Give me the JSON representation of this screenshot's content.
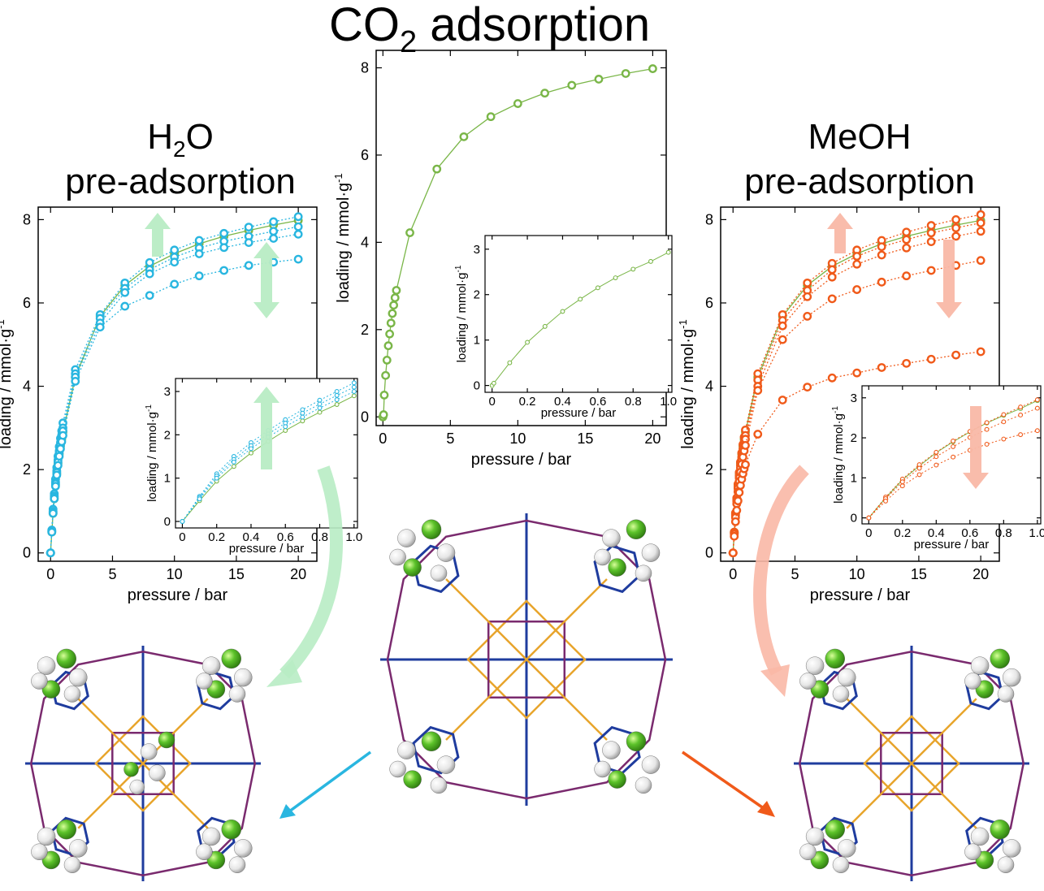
{
  "titles": {
    "main": "CO",
    "main_sub": "2",
    "main_rest": " adsorption",
    "left_l1": "H",
    "left_l1_sub": "2",
    "left_l1_rest": "O",
    "left_l2": "pre-adsorption",
    "right_l1": "MeOH",
    "right_l2": "pre-adsorption"
  },
  "colors": {
    "co2": "#7ab648",
    "water": "#29b6e0",
    "meoh": "#f05a1a",
    "arrow_green": "#b8ecc4",
    "arrow_salmon": "#f9b8a6",
    "framework_gold": "#e8a52c",
    "framework_blue": "#1f3c9e",
    "framework_purple": "#7a2a6e",
    "atom_green": "#5cc22a",
    "atom_white": "#eeeeee"
  },
  "chart_data": [
    {
      "id": "co2-main",
      "type": "scatter",
      "xlabel": "pressure / bar",
      "ylabel": "loading / mmol·g",
      "ylabel_sup": "-1",
      "xlim": [
        -0.5,
        21
      ],
      "ylim": [
        -0.2,
        8.4
      ],
      "xticks": [
        0,
        5,
        10,
        15,
        20
      ],
      "yticks": [
        0,
        2,
        4,
        6,
        8
      ],
      "series": [
        {
          "color": "co2",
          "line": "solid",
          "x": [
            0,
            0.05,
            0.1,
            0.2,
            0.3,
            0.4,
            0.5,
            0.6,
            0.7,
            0.8,
            0.9,
            1,
            2,
            4,
            6,
            8,
            10,
            12,
            14,
            16,
            18,
            20
          ],
          "y": [
            0,
            0.05,
            0.5,
            0.95,
            1.3,
            1.63,
            1.9,
            2.15,
            2.37,
            2.56,
            2.73,
            2.9,
            4.22,
            5.68,
            6.42,
            6.88,
            7.18,
            7.42,
            7.6,
            7.74,
            7.87,
            7.98
          ]
        }
      ]
    },
    {
      "id": "co2-inset",
      "type": "scatter",
      "xlabel": "pressure / bar",
      "ylabel": "loading / mmol·g",
      "ylabel_sup": "-1",
      "xlim": [
        -0.04,
        1.02
      ],
      "ylim": [
        -0.15,
        3.3
      ],
      "xticks": [
        0,
        0.2,
        0.4,
        0.6,
        0.8,
        1.0
      ],
      "xticklabels": [
        "0",
        "0.2",
        "0.4",
        "0.6",
        "0.8",
        "1.0"
      ],
      "yticks": [
        0,
        1,
        2,
        3
      ],
      "series": [
        {
          "color": "co2",
          "line": "solid",
          "x": [
            0,
            0.01,
            0.1,
            0.2,
            0.3,
            0.4,
            0.5,
            0.6,
            0.7,
            0.8,
            0.9,
            1.0
          ],
          "y": [
            0,
            0.05,
            0.5,
            0.95,
            1.3,
            1.63,
            1.9,
            2.15,
            2.37,
            2.56,
            2.73,
            2.93
          ]
        }
      ]
    },
    {
      "id": "h2o-main",
      "type": "scatter",
      "xlabel": "pressure / bar",
      "ylabel": "loading / mmol·g",
      "ylabel_sup": "-1",
      "xlim": [
        -1.0,
        21.5
      ],
      "ylim": [
        -0.2,
        8.3
      ],
      "xticks": [
        0,
        5,
        10,
        15,
        20
      ],
      "yticks": [
        0,
        2,
        4,
        6,
        8
      ],
      "series": [
        {
          "color": "co2",
          "line": "solid",
          "filled_marker": false,
          "x": [
            0,
            0.1,
            0.2,
            0.3,
            0.4,
            0.5,
            0.6,
            0.7,
            0.8,
            0.9,
            1,
            2,
            4,
            6,
            8,
            10,
            12,
            14,
            16,
            18,
            20
          ],
          "y": [
            0,
            0.5,
            0.95,
            1.3,
            1.63,
            1.9,
            2.15,
            2.37,
            2.56,
            2.73,
            2.9,
            4.22,
            5.68,
            6.42,
            6.88,
            7.18,
            7.42,
            7.6,
            7.74,
            7.87,
            7.98
          ]
        },
        {
          "color": "water",
          "line": "dotted",
          "x": [
            0,
            0.1,
            0.2,
            0.3,
            0.4,
            0.5,
            0.6,
            0.7,
            0.8,
            0.9,
            1,
            2,
            4,
            6,
            8,
            10,
            12,
            14,
            16,
            18,
            20
          ],
          "y": [
            0,
            0.55,
            1.05,
            1.42,
            1.77,
            2.05,
            2.32,
            2.55,
            2.75,
            2.93,
            3.12,
            4.4,
            5.72,
            6.48,
            6.97,
            7.27,
            7.5,
            7.67,
            7.82,
            7.95,
            8.07
          ]
        },
        {
          "color": "water",
          "line": "dotted",
          "x": [
            0,
            0.1,
            0.2,
            0.3,
            0.4,
            0.5,
            0.6,
            0.7,
            0.8,
            0.9,
            1,
            2,
            4,
            6,
            8,
            10,
            12,
            14,
            16,
            18,
            20
          ],
          "y": [
            0,
            0.53,
            1.0,
            1.37,
            1.7,
            1.97,
            2.23,
            2.45,
            2.65,
            2.83,
            3.0,
            4.3,
            5.63,
            6.35,
            6.8,
            7.1,
            7.32,
            7.48,
            7.6,
            7.72,
            7.83
          ]
        },
        {
          "color": "water",
          "line": "dotted",
          "x": [
            0,
            0.1,
            0.2,
            0.3,
            0.4,
            0.5,
            0.6,
            0.7,
            0.8,
            0.9,
            1,
            2,
            4,
            6,
            8,
            10,
            12,
            14,
            16,
            18,
            20
          ],
          "y": [
            0,
            0.52,
            0.98,
            1.34,
            1.66,
            1.93,
            2.18,
            2.4,
            2.59,
            2.77,
            2.93,
            4.22,
            5.52,
            6.25,
            6.7,
            6.98,
            7.18,
            7.33,
            7.45,
            7.55,
            7.65
          ]
        },
        {
          "color": "water",
          "line": "dotted",
          "x": [
            0,
            0.1,
            0.2,
            0.3,
            0.4,
            0.5,
            0.6,
            0.7,
            0.8,
            0.9,
            1,
            2,
            4,
            6,
            8,
            10,
            12,
            14,
            16,
            18,
            20
          ],
          "y": [
            0,
            0.5,
            0.95,
            1.3,
            1.6,
            1.87,
            2.1,
            2.32,
            2.5,
            2.67,
            2.82,
            4.12,
            5.42,
            5.92,
            6.18,
            6.45,
            6.65,
            6.78,
            6.9,
            6.98,
            7.05
          ]
        }
      ]
    },
    {
      "id": "h2o-inset",
      "type": "scatter",
      "xlabel": "pressure / bar",
      "ylabel": "loading / mmol·g",
      "ylabel_sup": "-1",
      "xlim": [
        -0.04,
        1.02
      ],
      "ylim": [
        -0.15,
        3.3
      ],
      "xticks": [
        0,
        0.2,
        0.4,
        0.6,
        0.8,
        1.0
      ],
      "xticklabels": [
        "0",
        "0.2",
        "0.4",
        "0.6",
        "0.8",
        "1.0"
      ],
      "yticks": [
        0,
        1,
        2,
        3
      ],
      "series": [
        {
          "color": "co2",
          "line": "solid",
          "x": [
            0,
            0.1,
            0.2,
            0.3,
            0.4,
            0.5,
            0.6,
            0.7,
            0.8,
            0.9,
            1.0
          ],
          "y": [
            0,
            0.48,
            0.93,
            1.27,
            1.58,
            1.85,
            2.1,
            2.32,
            2.52,
            2.7,
            2.9
          ]
        },
        {
          "color": "water",
          "line": "dotted",
          "x": [
            0,
            0.1,
            0.2,
            0.3,
            0.4,
            0.5,
            0.6,
            0.7,
            0.8,
            0.9,
            1.0
          ],
          "y": [
            0,
            0.58,
            1.1,
            1.5,
            1.82,
            2.1,
            2.35,
            2.58,
            2.8,
            3.0,
            3.2
          ]
        },
        {
          "color": "water",
          "line": "dotted",
          "x": [
            0,
            0.1,
            0.2,
            0.3,
            0.4,
            0.5,
            0.6,
            0.7,
            0.8,
            0.9,
            1.0
          ],
          "y": [
            0,
            0.55,
            1.05,
            1.43,
            1.75,
            2.02,
            2.27,
            2.5,
            2.71,
            2.91,
            3.1
          ]
        },
        {
          "color": "water",
          "line": "dotted",
          "x": [
            0,
            0.1,
            0.2,
            0.3,
            0.4,
            0.5,
            0.6,
            0.7,
            0.8,
            0.9,
            1.0
          ],
          "y": [
            0,
            0.52,
            1.0,
            1.37,
            1.68,
            1.95,
            2.19,
            2.41,
            2.62,
            2.81,
            3.0
          ]
        }
      ]
    },
    {
      "id": "meoh-main",
      "type": "scatter",
      "xlabel": "pressure / bar",
      "ylabel": "loading / mmol·g",
      "ylabel_sup": "-1",
      "xlim": [
        -1.0,
        21.5
      ],
      "ylim": [
        -0.2,
        8.3
      ],
      "xticks": [
        0,
        5,
        10,
        15,
        20
      ],
      "yticks": [
        0,
        2,
        4,
        6,
        8
      ],
      "series": [
        {
          "color": "co2",
          "line": "solid",
          "x": [
            0,
            0.1,
            0.2,
            0.3,
            0.4,
            0.5,
            0.6,
            0.7,
            0.8,
            0.9,
            1,
            2,
            4,
            6,
            8,
            10,
            12,
            14,
            16,
            18,
            20
          ],
          "y": [
            0,
            0.5,
            0.95,
            1.3,
            1.63,
            1.9,
            2.15,
            2.37,
            2.56,
            2.73,
            2.9,
            4.22,
            5.68,
            6.42,
            6.88,
            7.18,
            7.42,
            7.6,
            7.74,
            7.87,
            7.98
          ]
        },
        {
          "color": "meoh",
          "line": "dotted",
          "x": [
            0,
            0.1,
            0.2,
            0.3,
            0.4,
            0.5,
            0.6,
            0.7,
            0.8,
            0.9,
            1,
            2,
            4,
            6,
            8,
            10,
            12,
            14,
            16,
            18,
            20
          ],
          "y": [
            0,
            0.5,
            0.96,
            1.32,
            1.65,
            1.93,
            2.18,
            2.4,
            2.6,
            2.78,
            2.95,
            4.3,
            5.72,
            6.48,
            6.95,
            7.27,
            7.5,
            7.7,
            7.86,
            8.0,
            8.12
          ]
        },
        {
          "color": "meoh",
          "line": "dotted",
          "x": [
            0,
            0.1,
            0.2,
            0.3,
            0.4,
            0.5,
            0.6,
            0.7,
            0.8,
            0.9,
            1,
            2,
            4,
            6,
            8,
            10,
            12,
            14,
            16,
            18,
            20
          ],
          "y": [
            0,
            0.48,
            0.92,
            1.27,
            1.58,
            1.85,
            2.1,
            2.3,
            2.5,
            2.66,
            2.82,
            4.15,
            5.58,
            6.3,
            6.8,
            7.12,
            7.35,
            7.52,
            7.68,
            7.8,
            7.92
          ]
        },
        {
          "color": "meoh",
          "line": "dotted",
          "x": [
            0,
            0.1,
            0.2,
            0.3,
            0.4,
            0.5,
            0.6,
            0.7,
            0.8,
            0.9,
            1,
            2,
            4,
            6,
            8,
            10,
            12,
            14,
            16,
            18,
            20
          ],
          "y": [
            0,
            0.47,
            0.9,
            1.24,
            1.55,
            1.8,
            2.04,
            2.24,
            2.42,
            2.58,
            2.73,
            4.0,
            5.45,
            6.15,
            6.62,
            6.93,
            7.15,
            7.32,
            7.47,
            7.6,
            7.72
          ]
        },
        {
          "color": "meoh",
          "line": "dotted",
          "x": [
            0,
            0.1,
            0.2,
            0.3,
            0.4,
            0.5,
            0.6,
            0.7,
            0.8,
            0.9,
            1,
            2,
            4,
            6,
            8,
            10,
            12,
            14,
            16,
            18,
            20
          ],
          "y": [
            0,
            0.45,
            0.85,
            1.18,
            1.47,
            1.72,
            1.94,
            2.13,
            2.3,
            2.45,
            2.58,
            3.9,
            5.12,
            5.68,
            6.1,
            6.32,
            6.5,
            6.65,
            6.78,
            6.9,
            7.02
          ]
        },
        {
          "color": "meoh",
          "line": "dotted",
          "x": [
            0,
            0.1,
            0.2,
            0.3,
            0.4,
            0.5,
            0.6,
            0.7,
            0.8,
            0.9,
            1,
            2,
            4,
            6,
            8,
            10,
            12,
            14,
            16,
            18,
            20
          ],
          "y": [
            0,
            0.4,
            0.75,
            1.02,
            1.25,
            1.45,
            1.62,
            1.77,
            1.9,
            2.02,
            2.12,
            2.85,
            3.67,
            3.98,
            4.2,
            4.32,
            4.45,
            4.55,
            4.65,
            4.75,
            4.83
          ]
        }
      ]
    },
    {
      "id": "meoh-inset",
      "type": "scatter",
      "xlabel": "pressure / bar",
      "ylabel": "loading / mmol·g",
      "ylabel_sup": "-1",
      "xlim": [
        -0.04,
        1.02
      ],
      "ylim": [
        -0.15,
        3.3
      ],
      "xticks": [
        0,
        0.2,
        0.4,
        0.6,
        0.8,
        1.0
      ],
      "xticklabels": [
        "0",
        "0.2",
        "0.4",
        "0.6",
        "0.8",
        "1.0"
      ],
      "yticks": [
        0,
        1,
        2,
        3
      ],
      "series": [
        {
          "color": "co2",
          "line": "solid",
          "x": [
            0,
            0.1,
            0.2,
            0.3,
            0.4,
            0.5,
            0.6,
            0.7,
            0.8,
            0.9,
            1.0
          ],
          "y": [
            0,
            0.5,
            0.95,
            1.3,
            1.63,
            1.9,
            2.15,
            2.37,
            2.56,
            2.73,
            2.93
          ]
        },
        {
          "color": "meoh",
          "line": "dotted",
          "x": [
            0,
            0.1,
            0.2,
            0.3,
            0.4,
            0.5,
            0.6,
            0.7,
            0.8,
            0.9,
            1.0
          ],
          "y": [
            0,
            0.52,
            0.97,
            1.33,
            1.64,
            1.92,
            2.16,
            2.38,
            2.58,
            2.77,
            2.95
          ]
        },
        {
          "color": "meoh",
          "line": "dotted",
          "x": [
            0,
            0.1,
            0.2,
            0.3,
            0.4,
            0.5,
            0.6,
            0.7,
            0.8,
            0.9,
            1.0
          ],
          "y": [
            0,
            0.48,
            0.9,
            1.24,
            1.53,
            1.78,
            2.01,
            2.21,
            2.4,
            2.57,
            2.74
          ]
        },
        {
          "color": "meoh",
          "line": "dotted",
          "x": [
            0,
            0.1,
            0.2,
            0.3,
            0.4,
            0.5,
            0.6,
            0.7,
            0.8,
            0.9,
            1.0
          ],
          "y": [
            0,
            0.42,
            0.8,
            1.08,
            1.32,
            1.52,
            1.69,
            1.84,
            1.97,
            2.08,
            2.18
          ]
        }
      ]
    }
  ]
}
